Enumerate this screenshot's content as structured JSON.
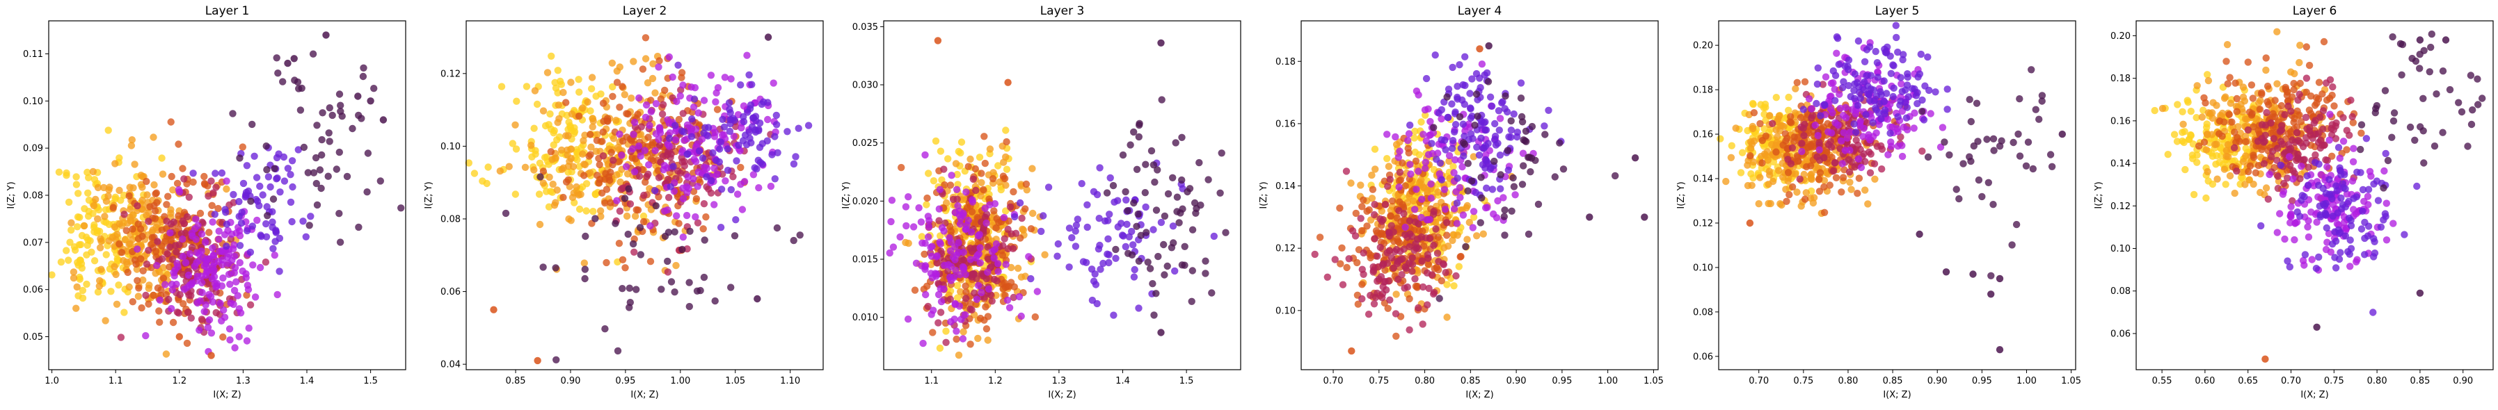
{
  "chart_data": [
    {
      "type": "scatter",
      "title": "Layer 1",
      "xlabel": "I(X; Z)",
      "ylabel": "I(Z; Y)",
      "xlim": [
        0.995,
        1.555
      ],
      "ylim": [
        0.043,
        0.117
      ],
      "xticks": [
        "1.0",
        "1.1",
        "1.2",
        "1.3",
        "1.4",
        "1.5"
      ],
      "yticks": [
        "0.05",
        "0.06",
        "0.07",
        "0.08",
        "0.09",
        "0.10",
        "0.11"
      ],
      "grid": false,
      "clusters": [
        {
          "name": "yellow",
          "color": "#ffd21f",
          "cx": 1.08,
          "cy": 0.072,
          "sx": 0.04,
          "sy": 0.008,
          "n": 150,
          "seed": 11
        },
        {
          "name": "orange",
          "color": "#f59d1e",
          "cx": 1.15,
          "cy": 0.071,
          "sx": 0.045,
          "sy": 0.008,
          "n": 200,
          "seed": 12
        },
        {
          "name": "red-orange",
          "color": "#d9541a",
          "cx": 1.2,
          "cy": 0.069,
          "sx": 0.045,
          "sy": 0.008,
          "n": 180,
          "seed": 13
        },
        {
          "name": "crimson",
          "color": "#b3245a",
          "cx": 1.23,
          "cy": 0.066,
          "sx": 0.04,
          "sy": 0.008,
          "n": 120,
          "seed": 14
        },
        {
          "name": "magenta",
          "color": "#b11ee0",
          "cx": 1.26,
          "cy": 0.065,
          "sx": 0.04,
          "sy": 0.007,
          "n": 150,
          "seed": 15
        },
        {
          "name": "violet",
          "color": "#6a20d8",
          "cx": 1.33,
          "cy": 0.079,
          "sx": 0.035,
          "sy": 0.006,
          "n": 70,
          "seed": 16
        },
        {
          "name": "dark-purple",
          "color": "#4c1650",
          "cx": 1.42,
          "cy": 0.088,
          "sx": 0.06,
          "sy": 0.011,
          "n": 60,
          "seed": 17
        }
      ],
      "outliers": [
        [
          1.43,
          0.114
        ],
        [
          1.48,
          0.101
        ],
        [
          1.5,
          0.1
        ],
        [
          1.52,
          0.096
        ],
        [
          1.37,
          0.108
        ],
        [
          1.38,
          0.109
        ],
        [
          1.25,
          0.046
        ],
        [
          1.2,
          0.05
        ]
      ]
    },
    {
      "type": "scatter",
      "title": "Layer 2",
      "xlabel": "I(X; Z)",
      "ylabel": "I(Z; Y)",
      "xlim": [
        0.805,
        1.13
      ],
      "ylim": [
        0.0385,
        0.1345
      ],
      "xticks": [
        "0.85",
        "0.90",
        "0.95",
        "1.00",
        "1.05",
        "1.10"
      ],
      "yticks": [
        "0.04",
        "0.06",
        "0.08",
        "0.10",
        "0.12"
      ],
      "grid": false,
      "clusters": [
        {
          "name": "yellow",
          "color": "#ffd21f",
          "cx": 0.9,
          "cy": 0.099,
          "sx": 0.03,
          "sy": 0.01,
          "n": 140,
          "seed": 21
        },
        {
          "name": "orange",
          "color": "#f59d1e",
          "cx": 0.94,
          "cy": 0.097,
          "sx": 0.035,
          "sy": 0.011,
          "n": 200,
          "seed": 22
        },
        {
          "name": "red-orange",
          "color": "#d9541a",
          "cx": 0.97,
          "cy": 0.096,
          "sx": 0.035,
          "sy": 0.011,
          "n": 180,
          "seed": 23
        },
        {
          "name": "crimson",
          "color": "#b3245a",
          "cx": 0.99,
          "cy": 0.095,
          "sx": 0.03,
          "sy": 0.01,
          "n": 110,
          "seed": 24
        },
        {
          "name": "magenta",
          "color": "#b11ee0",
          "cx": 1.02,
          "cy": 0.1,
          "sx": 0.035,
          "sy": 0.009,
          "n": 150,
          "seed": 25
        },
        {
          "name": "violet",
          "color": "#6a20d8",
          "cx": 1.05,
          "cy": 0.104,
          "sx": 0.03,
          "sy": 0.008,
          "n": 90,
          "seed": 26
        },
        {
          "name": "dark-purple",
          "color": "#4c1650",
          "cx": 0.96,
          "cy": 0.07,
          "sx": 0.055,
          "sy": 0.012,
          "n": 45,
          "seed": 27
        }
      ],
      "outliers": [
        [
          0.87,
          0.041
        ],
        [
          1.08,
          0.13
        ],
        [
          1.07,
          0.058
        ],
        [
          0.83,
          0.055
        ]
      ]
    },
    {
      "type": "scatter",
      "title": "Layer 3",
      "xlabel": "I(X; Z)",
      "ylabel": "I(Z; Y)",
      "xlim": [
        1.025,
        1.585
      ],
      "ylim": [
        0.0055,
        0.0355
      ],
      "xticks": [
        "1.1",
        "1.2",
        "1.3",
        "1.4",
        "1.5"
      ],
      "yticks": [
        "0.010",
        "0.015",
        "0.020",
        "0.025",
        "0.030",
        "0.035"
      ],
      "grid": false,
      "clusters": [
        {
          "name": "yellow",
          "color": "#ffd21f",
          "cx": 1.16,
          "cy": 0.0175,
          "sx": 0.035,
          "sy": 0.0035,
          "n": 160,
          "seed": 31
        },
        {
          "name": "orange",
          "color": "#f59d1e",
          "cx": 1.17,
          "cy": 0.0165,
          "sx": 0.04,
          "sy": 0.0035,
          "n": 200,
          "seed": 32
        },
        {
          "name": "red-orange",
          "color": "#d9541a",
          "cx": 1.17,
          "cy": 0.016,
          "sx": 0.04,
          "sy": 0.0035,
          "n": 170,
          "seed": 33
        },
        {
          "name": "crimson",
          "color": "#b3245a",
          "cx": 1.16,
          "cy": 0.015,
          "sx": 0.04,
          "sy": 0.003,
          "n": 110,
          "seed": 34
        },
        {
          "name": "magenta",
          "color": "#b11ee0",
          "cx": 1.14,
          "cy": 0.0155,
          "sx": 0.05,
          "sy": 0.0035,
          "n": 130,
          "seed": 35
        },
        {
          "name": "violet",
          "color": "#6a20d8",
          "cx": 1.38,
          "cy": 0.0175,
          "sx": 0.06,
          "sy": 0.003,
          "n": 80,
          "seed": 36
        },
        {
          "name": "dark-purple",
          "color": "#4c1650",
          "cx": 1.47,
          "cy": 0.019,
          "sx": 0.04,
          "sy": 0.004,
          "n": 70,
          "seed": 37
        }
      ],
      "outliers": [
        [
          1.11,
          0.0338
        ],
        [
          1.46,
          0.0336
        ],
        [
          1.22,
          0.0302
        ],
        [
          1.46,
          0.0087
        ]
      ]
    },
    {
      "type": "scatter",
      "title": "Layer 4",
      "xlabel": "I(X; Z)",
      "ylabel": "I(Z; Y)",
      "xlim": [
        0.665,
        1.055
      ],
      "ylim": [
        0.081,
        0.193
      ],
      "xticks": [
        "0.70",
        "0.75",
        "0.80",
        "0.85",
        "0.90",
        "0.95",
        "1.00",
        "1.05"
      ],
      "yticks": [
        "0.10",
        "0.12",
        "0.14",
        "0.16",
        "0.18"
      ],
      "grid": false,
      "clusters": [
        {
          "name": "yellow",
          "color": "#ffd21f",
          "cx": 0.8,
          "cy": 0.136,
          "sx": 0.025,
          "sy": 0.011,
          "n": 150,
          "seed": 41
        },
        {
          "name": "orange",
          "color": "#f59d1e",
          "cx": 0.79,
          "cy": 0.13,
          "sx": 0.03,
          "sy": 0.012,
          "n": 200,
          "seed": 42
        },
        {
          "name": "red-orange",
          "color": "#d9541a",
          "cx": 0.775,
          "cy": 0.124,
          "sx": 0.03,
          "sy": 0.012,
          "n": 180,
          "seed": 43
        },
        {
          "name": "crimson",
          "color": "#b3245a",
          "cx": 0.77,
          "cy": 0.118,
          "sx": 0.03,
          "sy": 0.011,
          "n": 120,
          "seed": 44
        },
        {
          "name": "magenta",
          "color": "#b11ee0",
          "cx": 0.83,
          "cy": 0.15,
          "sx": 0.035,
          "sy": 0.011,
          "n": 100,
          "seed": 45
        },
        {
          "name": "violet",
          "color": "#6a20d8",
          "cx": 0.86,
          "cy": 0.16,
          "sx": 0.03,
          "sy": 0.011,
          "n": 120,
          "seed": 46
        },
        {
          "name": "dark-purple",
          "color": "#4c1650",
          "cx": 0.88,
          "cy": 0.148,
          "sx": 0.04,
          "sy": 0.014,
          "n": 50,
          "seed": 47
        }
      ],
      "outliers": [
        [
          1.03,
          0.149
        ],
        [
          1.04,
          0.13
        ],
        [
          0.98,
          0.13
        ],
        [
          0.72,
          0.087
        ],
        [
          0.87,
          0.185
        ],
        [
          0.86,
          0.184
        ]
      ]
    },
    {
      "type": "scatter",
      "title": "Layer 5",
      "xlabel": "I(X; Z)",
      "ylabel": "I(Z; Y)",
      "xlim": [
        0.655,
        1.055
      ],
      "ylim": [
        0.054,
        0.211
      ],
      "xticks": [
        "0.70",
        "0.75",
        "0.80",
        "0.85",
        "0.90",
        "0.95",
        "1.00",
        "1.05"
      ],
      "yticks": [
        "0.06",
        "0.08",
        "0.10",
        "0.12",
        "0.14",
        "0.16",
        "0.18",
        "0.20"
      ],
      "grid": false,
      "clusters": [
        {
          "name": "yellow",
          "color": "#ffd21f",
          "cx": 0.72,
          "cy": 0.155,
          "sx": 0.025,
          "sy": 0.01,
          "n": 140,
          "seed": 51
        },
        {
          "name": "orange",
          "color": "#f59d1e",
          "cx": 0.745,
          "cy": 0.151,
          "sx": 0.03,
          "sy": 0.011,
          "n": 200,
          "seed": 52
        },
        {
          "name": "red-orange",
          "color": "#d9541a",
          "cx": 0.77,
          "cy": 0.156,
          "sx": 0.03,
          "sy": 0.011,
          "n": 170,
          "seed": 53
        },
        {
          "name": "crimson",
          "color": "#b3245a",
          "cx": 0.8,
          "cy": 0.16,
          "sx": 0.03,
          "sy": 0.011,
          "n": 110,
          "seed": 54
        },
        {
          "name": "magenta",
          "color": "#b11ee0",
          "cx": 0.82,
          "cy": 0.17,
          "sx": 0.035,
          "sy": 0.012,
          "n": 130,
          "seed": 55
        },
        {
          "name": "violet",
          "color": "#6a20d8",
          "cx": 0.83,
          "cy": 0.182,
          "sx": 0.035,
          "sy": 0.01,
          "n": 110,
          "seed": 56
        },
        {
          "name": "dark-purple",
          "color": "#4c1650",
          "cx": 0.96,
          "cy": 0.148,
          "sx": 0.045,
          "sy": 0.017,
          "n": 40,
          "seed": 57
        }
      ],
      "outliers": [
        [
          0.97,
          0.063
        ],
        [
          1.04,
          0.16
        ],
        [
          0.96,
          0.088
        ],
        [
          0.97,
          0.095
        ],
        [
          0.94,
          0.097
        ],
        [
          0.91,
          0.098
        ],
        [
          0.88,
          0.115
        ],
        [
          0.69,
          0.12
        ]
      ]
    },
    {
      "type": "scatter",
      "title": "Layer 6",
      "xlabel": "I(X; Z)",
      "ylabel": "I(Z; Y)",
      "xlim": [
        0.52,
        0.935
      ],
      "ylim": [
        0.043,
        0.207
      ],
      "xticks": [
        "0.55",
        "0.60",
        "0.65",
        "0.70",
        "0.75",
        "0.80",
        "0.85",
        "0.90"
      ],
      "yticks": [
        "0.06",
        "0.08",
        "0.10",
        "0.12",
        "0.14",
        "0.16",
        "0.18",
        "0.20"
      ],
      "grid": false,
      "clusters": [
        {
          "name": "yellow",
          "color": "#ffd21f",
          "cx": 0.62,
          "cy": 0.152,
          "sx": 0.03,
          "sy": 0.012,
          "n": 140,
          "seed": 61
        },
        {
          "name": "orange",
          "color": "#f59d1e",
          "cx": 0.66,
          "cy": 0.156,
          "sx": 0.035,
          "sy": 0.013,
          "n": 200,
          "seed": 62
        },
        {
          "name": "red-orange",
          "color": "#d9541a",
          "cx": 0.69,
          "cy": 0.158,
          "sx": 0.035,
          "sy": 0.013,
          "n": 170,
          "seed": 63
        },
        {
          "name": "crimson",
          "color": "#b3245a",
          "cx": 0.71,
          "cy": 0.148,
          "sx": 0.03,
          "sy": 0.012,
          "n": 110,
          "seed": 64
        },
        {
          "name": "magenta",
          "color": "#b11ee0",
          "cx": 0.75,
          "cy": 0.122,
          "sx": 0.03,
          "sy": 0.014,
          "n": 130,
          "seed": 65
        },
        {
          "name": "violet",
          "color": "#6a20d8",
          "cx": 0.76,
          "cy": 0.115,
          "sx": 0.03,
          "sy": 0.014,
          "n": 100,
          "seed": 66
        },
        {
          "name": "dark-purple",
          "color": "#4c1650",
          "cx": 0.85,
          "cy": 0.165,
          "sx": 0.04,
          "sy": 0.018,
          "n": 45,
          "seed": 67
        }
      ],
      "outliers": [
        [
          0.67,
          0.048
        ],
        [
          0.85,
          0.079
        ],
        [
          0.73,
          0.063
        ],
        [
          0.88,
          0.198
        ],
        [
          0.85,
          0.198
        ]
      ]
    }
  ]
}
